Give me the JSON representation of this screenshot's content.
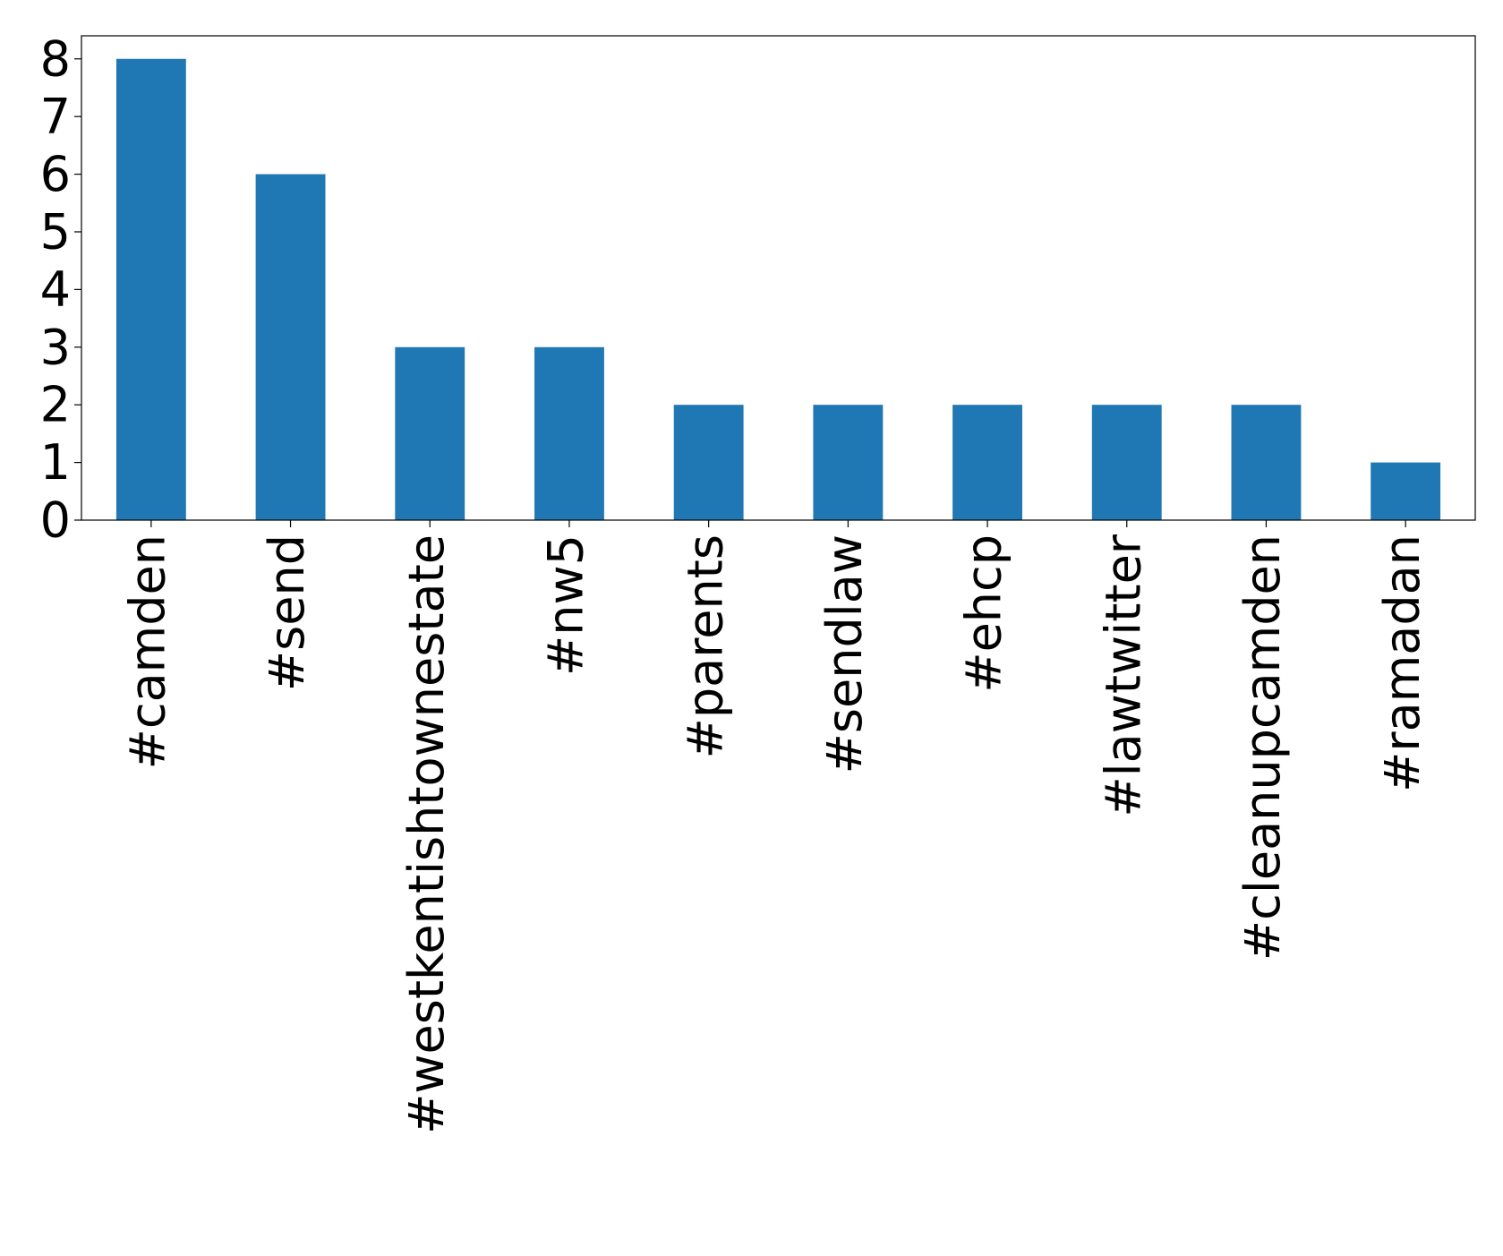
{
  "chart_data": {
    "type": "bar",
    "categories": [
      "#camden",
      "#send",
      "#westkentishtownestate",
      "#nw5",
      "#parents",
      "#sendlaw",
      "#ehcp",
      "#lawtwitter",
      "#cleanupcamden",
      "#ramadan"
    ],
    "values": [
      8,
      6,
      3,
      3,
      2,
      2,
      2,
      2,
      2,
      1
    ],
    "color": "#1f77b4",
    "ylim": [
      0,
      8.4
    ],
    "yticks": [
      0,
      1,
      2,
      3,
      4,
      5,
      6,
      7,
      8
    ],
    "grid": false
  }
}
